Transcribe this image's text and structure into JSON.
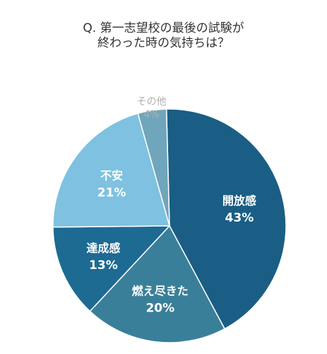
{
  "chart_data": {
    "type": "pie",
    "title": [
      "Q. 第一志望校の最後の試験が",
      "終わった時の気持ちは？"
    ],
    "slices": [
      {
        "label": "開放感",
        "value": 43,
        "pct_label": "43%",
        "color": "#1a5e85"
      },
      {
        "label": "燃え尽きた",
        "value": 20,
        "pct_label": "20%",
        "color": "#3a7f99"
      },
      {
        "label": "達成感",
        "value": 13,
        "pct_label": "13%",
        "color": "#1d6a92"
      },
      {
        "label": "不安",
        "value": 21,
        "pct_label": "21%",
        "color": "#7fc1e0"
      },
      {
        "label": "その他",
        "value": 4,
        "pct_label": "4%",
        "color": "#70a6bc"
      }
    ]
  }
}
